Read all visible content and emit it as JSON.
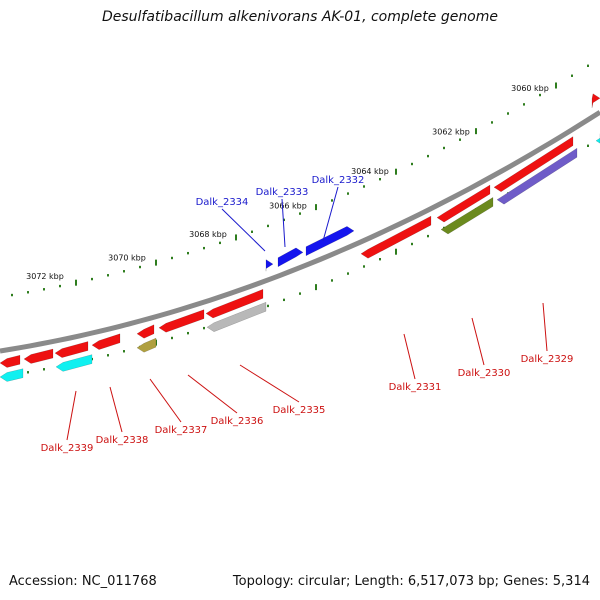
{
  "title": "Desulfatibacillum alkenivorans AK-01, complete genome",
  "footer": {
    "accession": "Accession: NC_011768",
    "summary": "Topology: circular; Length: 6,517,073 bp; Genes: 5,314"
  },
  "colors": {
    "backbone": "#8a8a8a",
    "tick": "#2e7d1e",
    "forward_label": "#1a1acc",
    "reverse_label": "#cc1111",
    "red": "#ee1111",
    "blue": "#1515ee",
    "cyan": "#10f0f0",
    "olive": "#6b8a1e",
    "khaki": "#b0a040",
    "gray": "#b8b8b8",
    "purple": "#6f5cc8"
  },
  "scale_labels": [
    "3060 kbp",
    "3062 kbp",
    "3064 kbp",
    "3066 kbp",
    "3068 kbp",
    "3070 kbp",
    "3072 kbp"
  ],
  "forward_genes": [
    {
      "label": "Dalk_2332",
      "color": "blue"
    },
    {
      "label": "Dalk_2333",
      "color": "blue"
    },
    {
      "label": "Dalk_2334",
      "color": "blue"
    },
    {
      "label": "",
      "color": "red"
    }
  ],
  "reverse_genes": [
    {
      "label": "Dalk_2329",
      "color": "purple"
    },
    {
      "label": "Dalk_2330",
      "color": "olive"
    },
    {
      "label": "Dalk_2331",
      "color": "red"
    },
    {
      "label": "Dalk_2335",
      "color": "gray"
    },
    {
      "label": "Dalk_2336",
      "color": "red"
    },
    {
      "label": "Dalk_2337",
      "color": "khaki"
    },
    {
      "label": "Dalk_2338",
      "color": "red"
    },
    {
      "label": "Dalk_2339",
      "color": "cyan"
    }
  ]
}
